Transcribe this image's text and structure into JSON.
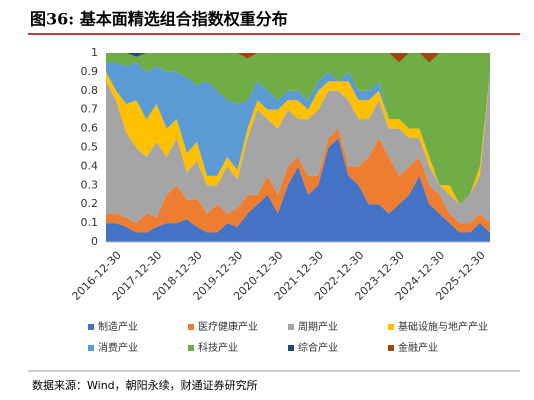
{
  "chart_data": {
    "type": "stacked_area",
    "title": "图36: 基本面精选组合指数权重分布",
    "source": "数据来源：Wind，朝阳永续，财通证券研究所",
    "categories": [
      null,
      "2016-12-30",
      null,
      null,
      null,
      "2017-12-30",
      null,
      null,
      null,
      "2018-12-30",
      null,
      null,
      null,
      "2019-12-30",
      null,
      null,
      null,
      "2020-12-30",
      null,
      null,
      null,
      "2021-12-30",
      null,
      null,
      null,
      "2022-12-30",
      null,
      null,
      null,
      "2023-12-30",
      null,
      null,
      null,
      "2024-12-30",
      null,
      null,
      null,
      "2025-12-30",
      null
    ],
    "ylim": [
      0,
      1
    ],
    "yticks": [
      0,
      0.1,
      0.2,
      0.3,
      0.4,
      0.5,
      0.6,
      0.7,
      0.8,
      0.9,
      1
    ],
    "legend": "bottom",
    "series": [
      {
        "name": "制造产业",
        "color": "#4472c4",
        "values": [
          0.1,
          0.1,
          0.08,
          0.05,
          0.05,
          0.08,
          0.1,
          0.1,
          0.12,
          0.08,
          0.05,
          0.05,
          0.1,
          0.08,
          0.15,
          0.2,
          0.25,
          0.15,
          0.3,
          0.4,
          0.25,
          0.3,
          0.5,
          0.55,
          0.35,
          0.3,
          0.2,
          0.2,
          0.15,
          0.2,
          0.25,
          0.35,
          0.2,
          0.15,
          0.1,
          0.05,
          0.05,
          0.1,
          0.05
        ]
      },
      {
        "name": "医疗健康产业",
        "color": "#ed7d31",
        "values": [
          0.05,
          0.05,
          0.05,
          0.05,
          0.1,
          0.05,
          0.15,
          0.2,
          0.1,
          0.15,
          0.1,
          0.15,
          0.05,
          0.1,
          0.1,
          0.05,
          0.1,
          0.1,
          0.1,
          0.05,
          0.1,
          0.05,
          0.05,
          0.05,
          0.05,
          0.1,
          0.25,
          0.35,
          0.3,
          0.15,
          0.15,
          0.1,
          0.1,
          0.1,
          0.05,
          0.05,
          0.05,
          0.05,
          0.05
        ]
      },
      {
        "name": "周期产业",
        "color": "#a5a5a5",
        "values": [
          0.7,
          0.6,
          0.45,
          0.4,
          0.3,
          0.4,
          0.2,
          0.25,
          0.15,
          0.2,
          0.15,
          0.1,
          0.25,
          0.15,
          0.3,
          0.45,
          0.3,
          0.35,
          0.3,
          0.2,
          0.3,
          0.35,
          0.25,
          0.2,
          0.35,
          0.25,
          0.2,
          0.2,
          0.15,
          0.25,
          0.15,
          0.1,
          0.1,
          0.05,
          0.1,
          0.1,
          0.15,
          0.2,
          0.8
        ]
      },
      {
        "name": "基础设施与地产产业",
        "color": "#ffc000",
        "values": [
          0.05,
          0.05,
          0.15,
          0.25,
          0.2,
          0.2,
          0.15,
          0.1,
          0.1,
          0.1,
          0.05,
          0.05,
          0.05,
          0.05,
          0.05,
          0.05,
          0.05,
          0.1,
          0.05,
          0.1,
          0.05,
          0.1,
          0.05,
          0.05,
          0.1,
          0.1,
          0.1,
          0.05,
          0.05,
          0.05,
          0.05,
          0.05,
          0.05,
          0,
          0.05,
          0,
          0,
          0.05,
          0
        ]
      },
      {
        "name": "消费产业",
        "color": "#5b9bd5",
        "values": [
          0.05,
          0.15,
          0.2,
          0.2,
          0.25,
          0.2,
          0.3,
          0.25,
          0.4,
          0.3,
          0.5,
          0.45,
          0.3,
          0.35,
          0.15,
          0.1,
          0.1,
          0.05,
          0.05,
          0.05,
          0.05,
          0.05,
          0.05,
          0,
          0.05,
          0.05,
          0.05,
          0.05,
          0,
          0,
          0,
          0,
          0,
          0,
          0,
          0,
          0,
          0,
          0
        ]
      },
      {
        "name": "科技产业",
        "color": "#70ad47",
        "values": [
          0.05,
          0.05,
          0.07,
          0.03,
          0.1,
          0.07,
          0.1,
          0.1,
          0.13,
          0.17,
          0.15,
          0.2,
          0.25,
          0.27,
          0.22,
          0.15,
          0.2,
          0.25,
          0.2,
          0.2,
          0.25,
          0.15,
          0.1,
          0.15,
          0.1,
          0.2,
          0.2,
          0.15,
          0.35,
          0.3,
          0.4,
          0.4,
          0.5,
          0.7,
          0.7,
          0.8,
          0.75,
          0.6,
          0.1
        ]
      },
      {
        "name": "综合产业",
        "color": "#264478",
        "values": [
          0,
          0,
          0,
          0.02,
          0,
          0,
          0,
          0,
          0,
          0,
          0,
          0,
          0,
          0,
          0,
          0,
          0,
          0,
          0,
          0,
          0,
          0,
          0,
          0,
          0,
          0,
          0,
          0,
          0,
          0,
          0,
          0,
          0,
          0,
          0,
          0,
          0,
          0,
          0
        ]
      },
      {
        "name": "金融产业",
        "color": "#9e480e",
        "values": [
          0,
          0,
          0,
          0,
          0,
          0,
          0,
          0,
          0,
          0,
          0,
          0,
          0,
          0,
          0.03,
          0,
          0,
          0,
          0,
          0,
          0,
          0,
          0,
          0,
          0,
          0,
          0,
          0,
          0,
          0.05,
          0,
          0,
          0.05,
          0,
          0,
          0,
          0,
          0,
          0
        ]
      }
    ]
  }
}
